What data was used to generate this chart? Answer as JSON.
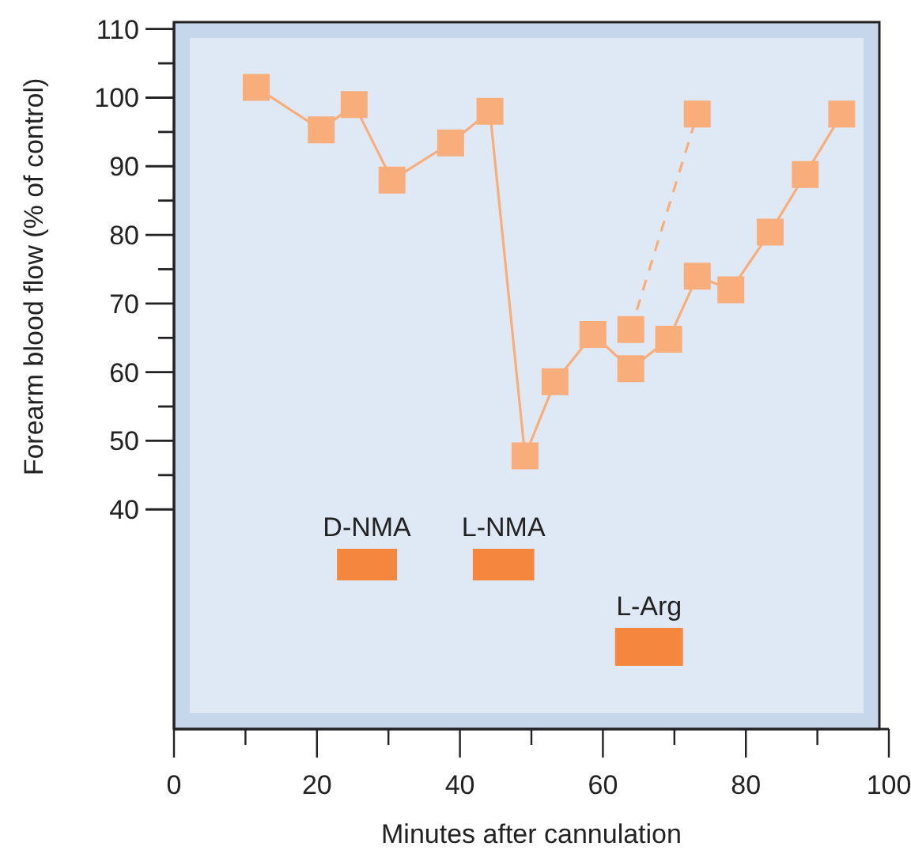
{
  "chart_data": {
    "type": "line",
    "xlabel": "Minutes after cannulation",
    "ylabel": "Forearm blood flow (% of control)",
    "xlim": [
      0,
      100
    ],
    "ylim": [
      8,
      111
    ],
    "xticks": [
      0,
      {
        "value": 10,
        "label": null
      },
      20,
      {
        "value": 30,
        "label": null
      },
      40,
      {
        "value": 50,
        "label": null
      },
      60,
      {
        "value": 70,
        "label": null
      },
      80,
      {
        "value": 90,
        "label": null
      },
      100
    ],
    "yticks": [
      40,
      {
        "value": 45,
        "label": null
      },
      50,
      {
        "value": 55,
        "label": null
      },
      60,
      {
        "value": 65,
        "label": null
      },
      70,
      {
        "value": 75,
        "label": null
      },
      80,
      {
        "value": 85,
        "label": null
      },
      90,
      {
        "value": 95,
        "label": null
      },
      100,
      {
        "value": 105,
        "label": null
      },
      110
    ],
    "marker": "square",
    "series": [
      {
        "color": "#f9ad7b",
        "x": [
          11.5,
          20.6,
          25.2,
          30.5,
          38.7,
          44.2,
          49.1,
          53.3,
          58.6,
          63.9,
          69.2,
          73.2,
          77.9,
          83.4,
          88.3,
          93.4
        ],
        "values": [
          101.5,
          95.3,
          99,
          88,
          93.4,
          98,
          47.8,
          58.6,
          65.5,
          60.5,
          64.8,
          74,
          72,
          80.4,
          88.8,
          97.6
        ],
        "line_style": "solid"
      },
      {
        "color": "#f9ad7b",
        "x": [
          63.9,
          73.2
        ],
        "values": [
          66.2,
          97.6
        ],
        "line_style": "dashed"
      }
    ],
    "bands": [
      {
        "axis": "x",
        "from": 22.8,
        "to": 31.2,
        "label": "D-NMA",
        "color": "#f4863d"
      },
      {
        "axis": "x",
        "from": 41.8,
        "to": 50.4,
        "label": "L-NMA",
        "color": "#f4863d"
      },
      {
        "axis": "x",
        "from": 61.7,
        "to": 71.2,
        "label": "L-Arg",
        "color": "#f4863d"
      }
    ]
  }
}
